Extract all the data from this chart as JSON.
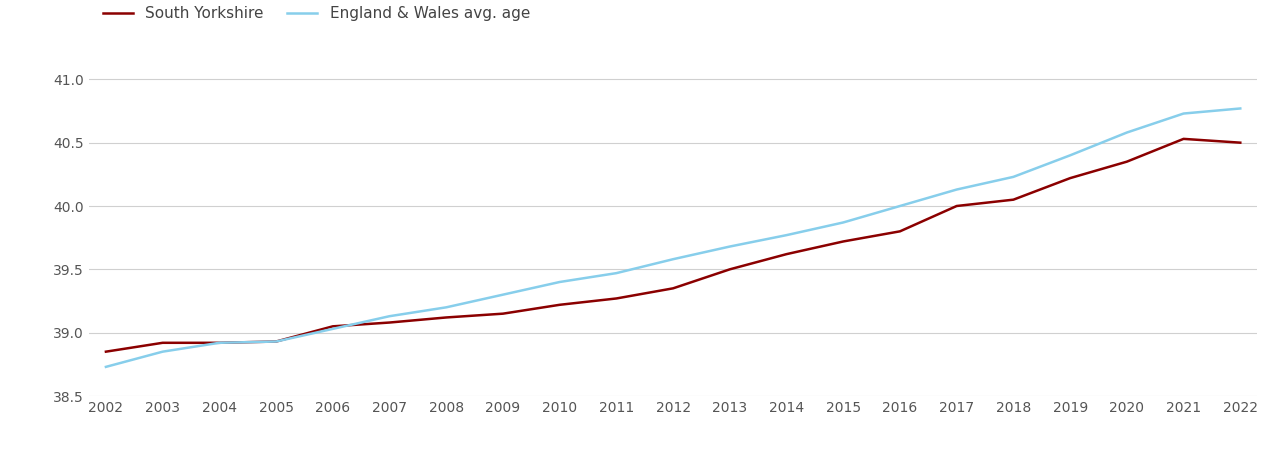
{
  "years": [
    2002,
    2003,
    2004,
    2005,
    2006,
    2007,
    2008,
    2009,
    2010,
    2011,
    2012,
    2013,
    2014,
    2015,
    2016,
    2017,
    2018,
    2019,
    2020,
    2021,
    2022
  ],
  "south_yorkshire": [
    38.85,
    38.92,
    38.92,
    38.93,
    39.05,
    39.08,
    39.12,
    39.15,
    39.22,
    39.27,
    39.35,
    39.5,
    39.62,
    39.72,
    39.8,
    40.0,
    40.05,
    40.22,
    40.35,
    40.53,
    40.5
  ],
  "england_wales": [
    38.73,
    38.85,
    38.92,
    38.93,
    39.03,
    39.13,
    39.2,
    39.3,
    39.4,
    39.47,
    39.58,
    39.68,
    39.77,
    39.87,
    40.0,
    40.13,
    40.23,
    40.4,
    40.58,
    40.73,
    40.77
  ],
  "south_yorkshire_color": "#8b0000",
  "england_wales_color": "#87CEEB",
  "south_yorkshire_label": "South Yorkshire",
  "england_wales_label": "England & Wales avg. age",
  "ylim": [
    38.5,
    41.2
  ],
  "yticks": [
    38.5,
    39.0,
    39.5,
    40.0,
    40.5,
    41.0
  ],
  "background_color": "#ffffff",
  "grid_color": "#d0d0d0",
  "line_width": 1.8,
  "legend_fontsize": 11,
  "tick_fontsize": 10,
  "tick_color": "#555555"
}
